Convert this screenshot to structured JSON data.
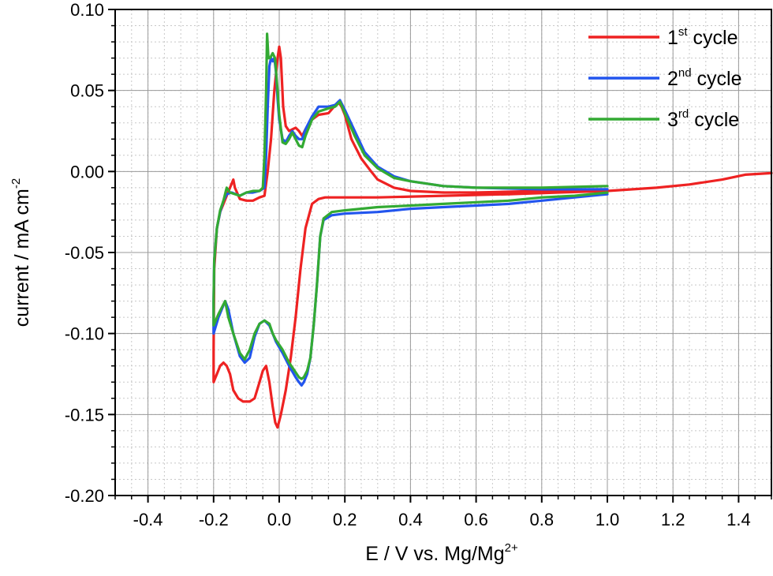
{
  "chart_data": {
    "type": "line",
    "title": "",
    "xlabel": "E / V vs. Mg/Mg",
    "xlabel_sup": "2+",
    "ylabel": "current / mA cm",
    "ylabel_sup": "-2",
    "xlim": [
      -0.5,
      1.5
    ],
    "ylim": [
      -0.2,
      0.1
    ],
    "xticks": [
      -0.4,
      -0.2,
      0.0,
      0.2,
      0.4,
      0.6,
      0.8,
      1.0,
      1.2,
      1.4
    ],
    "xtick_labels": [
      "-0.4",
      "-0.2",
      "0.0",
      "0.2",
      "0.4",
      "0.6",
      "0.8",
      "1.0",
      "1.2",
      "1.4"
    ],
    "yticks": [
      0.1,
      0.05,
      0.0,
      -0.05,
      -0.1,
      -0.15,
      -0.2
    ],
    "ytick_labels": [
      "0.10",
      "0.05",
      "0.00",
      "-0.05",
      "-0.10",
      "-0.15",
      "-0.20"
    ],
    "grid": true,
    "legend_position": "top-right",
    "series": [
      {
        "name": "1",
        "name_sup": "st",
        "name_suffix": " cycle",
        "color": "#ee2222",
        "points": [
          [
            1.5,
            -0.001
          ],
          [
            1.42,
            -0.002
          ],
          [
            1.35,
            -0.005
          ],
          [
            1.25,
            -0.008
          ],
          [
            1.15,
            -0.01
          ],
          [
            1.0,
            -0.012
          ],
          [
            0.85,
            -0.013
          ],
          [
            0.7,
            -0.014
          ],
          [
            0.5,
            -0.015
          ],
          [
            0.3,
            -0.016
          ],
          [
            0.14,
            -0.016
          ],
          [
            0.12,
            -0.017
          ],
          [
            0.1,
            -0.02
          ],
          [
            0.08,
            -0.035
          ],
          [
            0.065,
            -0.06
          ],
          [
            0.05,
            -0.09
          ],
          [
            0.035,
            -0.115
          ],
          [
            0.02,
            -0.135
          ],
          [
            0.005,
            -0.15
          ],
          [
            -0.005,
            -0.158
          ],
          [
            -0.012,
            -0.155
          ],
          [
            -0.02,
            -0.145
          ],
          [
            -0.03,
            -0.13
          ],
          [
            -0.04,
            -0.12
          ],
          [
            -0.05,
            -0.123
          ],
          [
            -0.06,
            -0.13
          ],
          [
            -0.075,
            -0.14
          ],
          [
            -0.09,
            -0.142
          ],
          [
            -0.11,
            -0.142
          ],
          [
            -0.125,
            -0.14
          ],
          [
            -0.14,
            -0.135
          ],
          [
            -0.15,
            -0.125
          ],
          [
            -0.16,
            -0.12
          ],
          [
            -0.17,
            -0.118
          ],
          [
            -0.18,
            -0.12
          ],
          [
            -0.19,
            -0.125
          ],
          [
            -0.2,
            -0.13
          ],
          [
            -0.2,
            -0.11
          ],
          [
            -0.198,
            -0.06
          ],
          [
            -0.19,
            -0.035
          ],
          [
            -0.18,
            -0.025
          ],
          [
            -0.17,
            -0.02
          ],
          [
            -0.16,
            -0.015
          ],
          [
            -0.15,
            -0.01
          ],
          [
            -0.14,
            -0.005
          ],
          [
            -0.135,
            -0.01
          ],
          [
            -0.12,
            -0.017
          ],
          [
            -0.1,
            -0.018
          ],
          [
            -0.08,
            -0.018
          ],
          [
            -0.06,
            -0.016
          ],
          [
            -0.045,
            -0.015
          ],
          [
            -0.035,
            0.0
          ],
          [
            -0.025,
            0.02
          ],
          [
            -0.015,
            0.05
          ],
          [
            -0.005,
            0.07
          ],
          [
            0.0,
            0.077
          ],
          [
            0.005,
            0.07
          ],
          [
            0.012,
            0.04
          ],
          [
            0.02,
            0.028
          ],
          [
            0.03,
            0.025
          ],
          [
            0.04,
            0.026
          ],
          [
            0.05,
            0.027
          ],
          [
            0.06,
            0.025
          ],
          [
            0.07,
            0.022
          ],
          [
            0.08,
            0.026
          ],
          [
            0.1,
            0.032
          ],
          [
            0.12,
            0.035
          ],
          [
            0.15,
            0.036
          ],
          [
            0.18,
            0.043
          ],
          [
            0.19,
            0.04
          ],
          [
            0.2,
            0.035
          ],
          [
            0.22,
            0.02
          ],
          [
            0.25,
            0.008
          ],
          [
            0.28,
            0.0
          ],
          [
            0.3,
            -0.005
          ],
          [
            0.35,
            -0.01
          ],
          [
            0.4,
            -0.012
          ],
          [
            0.5,
            -0.013
          ],
          [
            0.6,
            -0.013
          ],
          [
            0.8,
            -0.012
          ],
          [
            1.0,
            -0.012
          ]
        ]
      },
      {
        "name": "2",
        "name_sup": "nd",
        "name_suffix": " cycle",
        "color": "#2255ee",
        "points": [
          [
            1.0,
            -0.014
          ],
          [
            0.9,
            -0.016
          ],
          [
            0.8,
            -0.018
          ],
          [
            0.7,
            -0.02
          ],
          [
            0.6,
            -0.021
          ],
          [
            0.5,
            -0.022
          ],
          [
            0.4,
            -0.023
          ],
          [
            0.3,
            -0.025
          ],
          [
            0.2,
            -0.026
          ],
          [
            0.16,
            -0.027
          ],
          [
            0.135,
            -0.03
          ],
          [
            0.125,
            -0.04
          ],
          [
            0.115,
            -0.07
          ],
          [
            0.105,
            -0.095
          ],
          [
            0.095,
            -0.115
          ],
          [
            0.085,
            -0.125
          ],
          [
            0.075,
            -0.13
          ],
          [
            0.068,
            -0.132
          ],
          [
            0.06,
            -0.13
          ],
          [
            0.05,
            -0.127
          ],
          [
            0.03,
            -0.12
          ],
          [
            0.01,
            -0.112
          ],
          [
            -0.01,
            -0.105
          ],
          [
            -0.02,
            -0.1
          ],
          [
            -0.03,
            -0.095
          ],
          [
            -0.045,
            -0.092
          ],
          [
            -0.06,
            -0.094
          ],
          [
            -0.075,
            -0.102
          ],
          [
            -0.09,
            -0.115
          ],
          [
            -0.105,
            -0.118
          ],
          [
            -0.12,
            -0.114
          ],
          [
            -0.14,
            -0.1
          ],
          [
            -0.155,
            -0.085
          ],
          [
            -0.165,
            -0.08
          ],
          [
            -0.175,
            -0.085
          ],
          [
            -0.185,
            -0.09
          ],
          [
            -0.2,
            -0.1
          ],
          [
            -0.2,
            -0.08
          ],
          [
            -0.198,
            -0.055
          ],
          [
            -0.19,
            -0.035
          ],
          [
            -0.18,
            -0.025
          ],
          [
            -0.17,
            -0.018
          ],
          [
            -0.16,
            -0.014
          ],
          [
            -0.145,
            -0.013
          ],
          [
            -0.12,
            -0.015
          ],
          [
            -0.1,
            -0.013
          ],
          [
            -0.08,
            -0.013
          ],
          [
            -0.06,
            -0.012
          ],
          [
            -0.045,
            -0.01
          ],
          [
            -0.04,
            0.01
          ],
          [
            -0.035,
            0.04
          ],
          [
            -0.03,
            0.065
          ],
          [
            -0.025,
            0.07
          ],
          [
            -0.02,
            0.068
          ],
          [
            -0.015,
            0.07
          ],
          [
            -0.01,
            0.062
          ],
          [
            -0.005,
            0.045
          ],
          [
            0.0,
            0.032
          ],
          [
            0.01,
            0.02
          ],
          [
            0.02,
            0.018
          ],
          [
            0.03,
            0.022
          ],
          [
            0.04,
            0.025
          ],
          [
            0.05,
            0.022
          ],
          [
            0.06,
            0.02
          ],
          [
            0.07,
            0.02
          ],
          [
            0.08,
            0.026
          ],
          [
            0.1,
            0.034
          ],
          [
            0.12,
            0.04
          ],
          [
            0.15,
            0.04
          ],
          [
            0.17,
            0.041
          ],
          [
            0.185,
            0.044
          ],
          [
            0.2,
            0.038
          ],
          [
            0.23,
            0.025
          ],
          [
            0.26,
            0.012
          ],
          [
            0.3,
            0.003
          ],
          [
            0.35,
            -0.003
          ],
          [
            0.4,
            -0.006
          ],
          [
            0.5,
            -0.009
          ],
          [
            0.6,
            -0.01
          ],
          [
            0.8,
            -0.011
          ],
          [
            1.0,
            -0.011
          ]
        ]
      },
      {
        "name": "3",
        "name_sup": "rd",
        "name_suffix": " cycle",
        "color": "#33aa33",
        "points": [
          [
            1.0,
            -0.013
          ],
          [
            0.9,
            -0.015
          ],
          [
            0.8,
            -0.016
          ],
          [
            0.7,
            -0.018
          ],
          [
            0.6,
            -0.019
          ],
          [
            0.5,
            -0.02
          ],
          [
            0.4,
            -0.021
          ],
          [
            0.3,
            -0.022
          ],
          [
            0.2,
            -0.024
          ],
          [
            0.16,
            -0.025
          ],
          [
            0.135,
            -0.029
          ],
          [
            0.125,
            -0.04
          ],
          [
            0.115,
            -0.07
          ],
          [
            0.105,
            -0.095
          ],
          [
            0.095,
            -0.115
          ],
          [
            0.085,
            -0.123
          ],
          [
            0.075,
            -0.127
          ],
          [
            0.068,
            -0.128
          ],
          [
            0.06,
            -0.127
          ],
          [
            0.05,
            -0.124
          ],
          [
            0.03,
            -0.118
          ],
          [
            0.01,
            -0.11
          ],
          [
            -0.01,
            -0.104
          ],
          [
            -0.02,
            -0.1
          ],
          [
            -0.03,
            -0.094
          ],
          [
            -0.045,
            -0.092
          ],
          [
            -0.06,
            -0.094
          ],
          [
            -0.075,
            -0.1
          ],
          [
            -0.09,
            -0.11
          ],
          [
            -0.105,
            -0.116
          ],
          [
            -0.12,
            -0.112
          ],
          [
            -0.14,
            -0.1
          ],
          [
            -0.155,
            -0.09
          ],
          [
            -0.165,
            -0.08
          ],
          [
            -0.175,
            -0.084
          ],
          [
            -0.185,
            -0.088
          ],
          [
            -0.2,
            -0.095
          ],
          [
            -0.2,
            -0.08
          ],
          [
            -0.198,
            -0.055
          ],
          [
            -0.19,
            -0.035
          ],
          [
            -0.18,
            -0.024
          ],
          [
            -0.17,
            -0.018
          ],
          [
            -0.16,
            -0.01
          ],
          [
            -0.15,
            -0.013
          ],
          [
            -0.12,
            -0.015
          ],
          [
            -0.1,
            -0.013
          ],
          [
            -0.08,
            -0.012
          ],
          [
            -0.06,
            -0.012
          ],
          [
            -0.05,
            -0.01
          ],
          [
            -0.045,
            0.01
          ],
          [
            -0.04,
            0.05
          ],
          [
            -0.037,
            0.085
          ],
          [
            -0.033,
            0.07
          ],
          [
            -0.028,
            0.07
          ],
          [
            -0.02,
            0.073
          ],
          [
            -0.013,
            0.07
          ],
          [
            -0.005,
            0.05
          ],
          [
            0.0,
            0.035
          ],
          [
            0.01,
            0.018
          ],
          [
            0.02,
            0.017
          ],
          [
            0.03,
            0.02
          ],
          [
            0.04,
            0.024
          ],
          [
            0.05,
            0.02
          ],
          [
            0.06,
            0.016
          ],
          [
            0.07,
            0.015
          ],
          [
            0.08,
            0.022
          ],
          [
            0.1,
            0.032
          ],
          [
            0.12,
            0.037
          ],
          [
            0.15,
            0.039
          ],
          [
            0.17,
            0.04
          ],
          [
            0.185,
            0.043
          ],
          [
            0.2,
            0.036
          ],
          [
            0.23,
            0.022
          ],
          [
            0.26,
            0.01
          ],
          [
            0.3,
            0.002
          ],
          [
            0.35,
            -0.004
          ],
          [
            0.4,
            -0.006
          ],
          [
            0.5,
            -0.009
          ],
          [
            0.6,
            -0.01
          ],
          [
            0.8,
            -0.01
          ],
          [
            1.0,
            -0.009
          ]
        ]
      }
    ]
  }
}
